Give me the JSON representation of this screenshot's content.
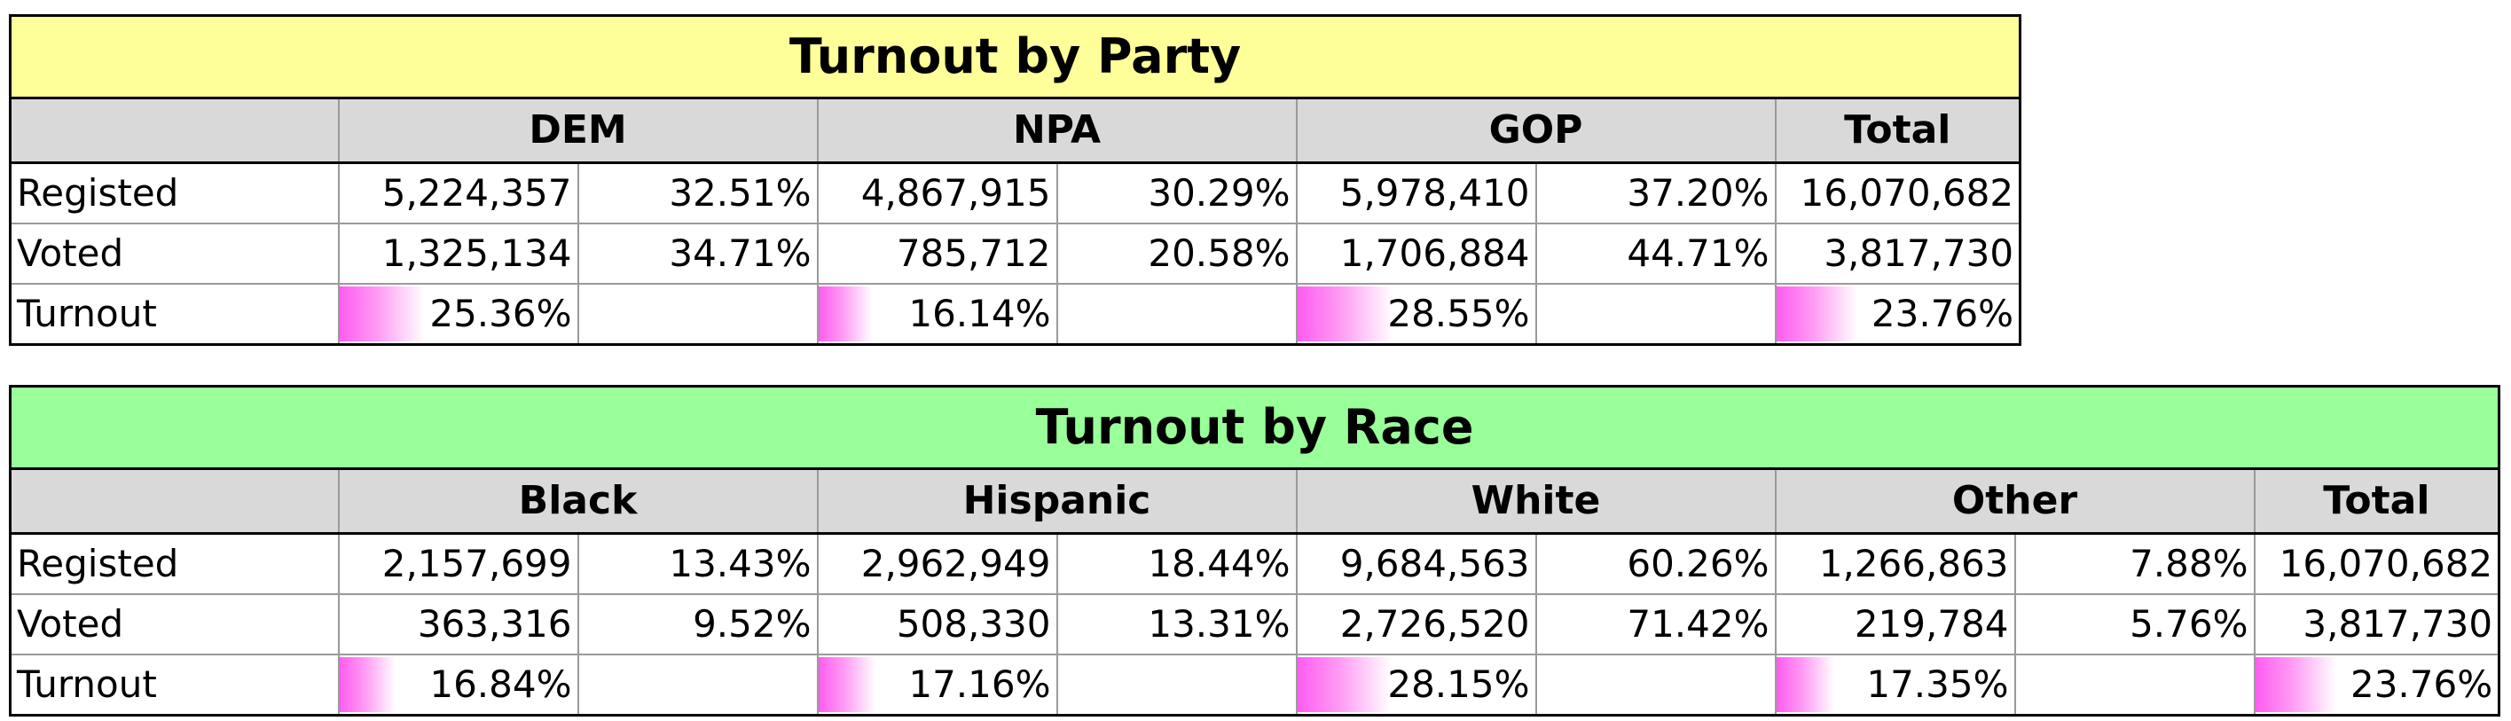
{
  "party_table": {
    "title": "Turnout by Party",
    "title_bg": "#ffff99",
    "groups": [
      {
        "label": "DEM",
        "registered": "5,224,357",
        "registered_pct": "32.51%",
        "voted": "1,325,134",
        "voted_pct": "34.71%",
        "turnout": "25.36%",
        "turnout_value": 25.36
      },
      {
        "label": "NPA",
        "registered": "4,867,915",
        "registered_pct": "30.29%",
        "voted": "785,712",
        "voted_pct": "20.58%",
        "turnout": "16.14%",
        "turnout_value": 16.14
      },
      {
        "label": "GOP",
        "registered": "5,978,410",
        "registered_pct": "37.20%",
        "voted": "1,706,884",
        "voted_pct": "44.71%",
        "turnout": "28.55%",
        "turnout_value": 28.55
      }
    ],
    "total": {
      "label": "Total",
      "registered": "16,070,682",
      "voted": "3,817,730",
      "turnout": "23.76%",
      "turnout_value": 23.76
    },
    "row_labels": {
      "registered": "Registed",
      "voted": "Voted",
      "turnout": "Turnout"
    }
  },
  "race_table": {
    "title": "Turnout by Race",
    "title_bg": "#99ff99",
    "groups": [
      {
        "label": "Black",
        "registered": "2,157,699",
        "registered_pct": "13.43%",
        "voted": "363,316",
        "voted_pct": "9.52%",
        "turnout": "16.84%",
        "turnout_value": 16.84
      },
      {
        "label": "Hispanic",
        "registered": "2,962,949",
        "registered_pct": "18.44%",
        "voted": "508,330",
        "voted_pct": "13.31%",
        "turnout": "17.16%",
        "turnout_value": 17.16
      },
      {
        "label": "White",
        "registered": "9,684,563",
        "registered_pct": "60.26%",
        "voted": "2,726,520",
        "voted_pct": "71.42%",
        "turnout": "28.15%",
        "turnout_value": 28.15
      },
      {
        "label": "Other",
        "registered": "1,266,863",
        "registered_pct": "7.88%",
        "voted": "219,784",
        "voted_pct": "5.76%",
        "turnout": "17.35%",
        "turnout_value": 17.35
      }
    ],
    "total": {
      "label": "Total",
      "registered": "16,070,682",
      "voted": "3,817,730",
      "turnout": "23.76%",
      "turnout_value": 23.76
    },
    "row_labels": {
      "registered": "Registed",
      "voted": "Voted",
      "turnout": "Turnout"
    }
  },
  "colors": {
    "header_bg": "#d9d9d9",
    "databar": "#ff5cf0"
  }
}
